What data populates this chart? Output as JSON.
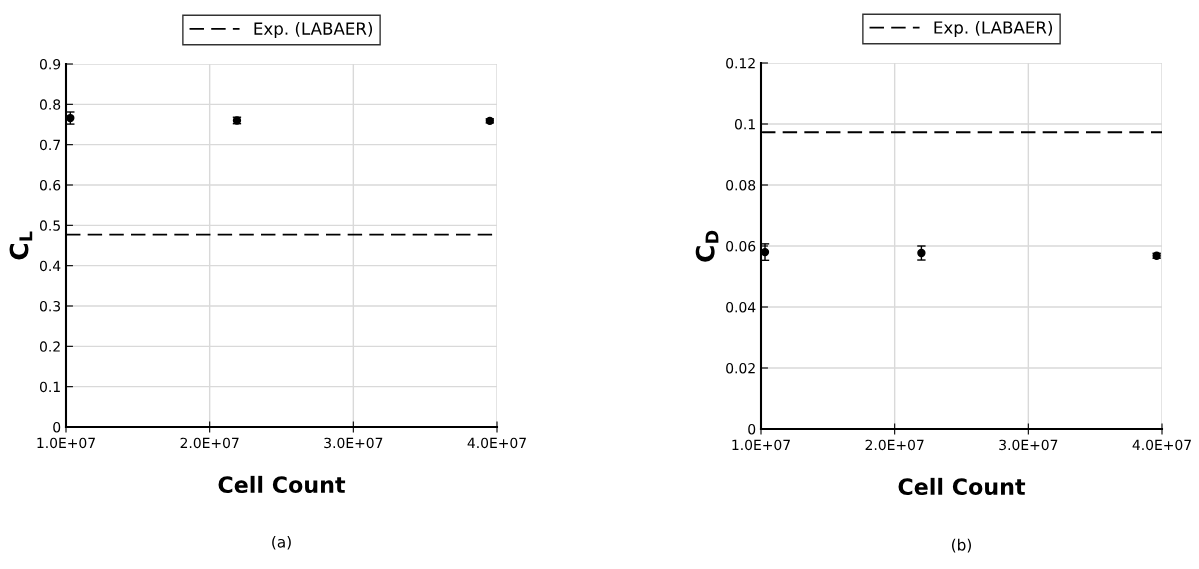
{
  "chart_data": [
    {
      "type": "scatter",
      "xlabel": "Cell Count",
      "ylabel": "C$_{L}$",
      "x": [
        10300000,
        21900000,
        39500000
      ],
      "values": [
        0.766,
        0.76,
        0.759
      ],
      "errors": [
        0.015,
        0.008,
        0.005
      ],
      "color": "#000000",
      "marker": "circle",
      "xlim": [
        10000000,
        40000000
      ],
      "xticks": [
        {
          "value": 10000000,
          "label": "1.0E+07"
        },
        {
          "value": 20000000,
          "label": "2.0E+07"
        },
        {
          "value": 30000000,
          "label": "3.0E+07"
        },
        {
          "value": 40000000,
          "label": "4.0E+07"
        }
      ],
      "ylim": [
        0,
        0.9
      ],
      "yticks": [
        0,
        0.1,
        0.2,
        0.3,
        0.4,
        0.5,
        0.6,
        0.7,
        0.8,
        0.9
      ],
      "grid": true,
      "legend": "top",
      "ref_lines": [
        {
          "axis": "y",
          "value": 0.477,
          "label": "Exp. (LABAER)",
          "color": "#000000",
          "line_style": "dashed"
        }
      ],
      "annotations": [
        "(a)"
      ]
    },
    {
      "type": "scatter",
      "xlabel": "Cell Count",
      "ylabel": "C$_{D}$",
      "x": [
        10300000,
        22000000,
        39600000
      ],
      "values": [
        0.058,
        0.0577,
        0.0568
      ],
      "errors": [
        0.0027,
        0.0023,
        0.0008
      ],
      "color": "#000000",
      "marker": "circle",
      "xlim": [
        10000000,
        40000000
      ],
      "xticks": [
        {
          "value": 10000000,
          "label": "1.0E+07"
        },
        {
          "value": 20000000,
          "label": "2.0E+07"
        },
        {
          "value": 30000000,
          "label": "3.0E+07"
        },
        {
          "value": 40000000,
          "label": "4.0E+07"
        }
      ],
      "ylim": [
        0,
        0.12
      ],
      "yticks": [
        0,
        0.02,
        0.04,
        0.06,
        0.08,
        0.1,
        0.12
      ],
      "grid": true,
      "legend": "top",
      "ref_lines": [
        {
          "axis": "y",
          "value": 0.0973,
          "label": "Exp. (LABAER)",
          "color": "#000000",
          "line_style": "dashed"
        }
      ],
      "annotations": [
        "(b)"
      ]
    }
  ]
}
